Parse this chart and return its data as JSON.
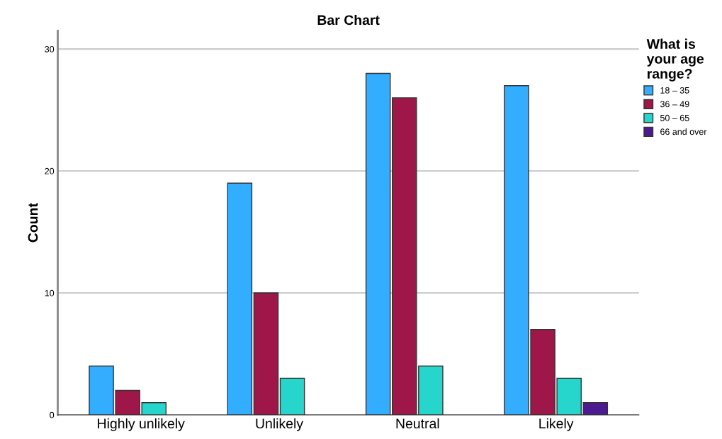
{
  "chart_data": {
    "type": "bar",
    "title": "Bar Chart",
    "ylabel": "Count",
    "legend_title": "What is\nyour age\nrange?",
    "categories": [
      "Highly unlikely",
      "Unlikely",
      "Neutral",
      "Likely"
    ],
    "series": [
      {
        "name": "18 – 35",
        "color": "#33adff",
        "values": [
          4,
          19,
          28,
          27
        ]
      },
      {
        "name": "36 – 49",
        "color": "#9e1748",
        "values": [
          2,
          10,
          26,
          7
        ]
      },
      {
        "name": "50 – 65",
        "color": "#26d6cc",
        "values": [
          1,
          3,
          4,
          3
        ]
      },
      {
        "name": "66 and over",
        "color": "#4c1a91",
        "values": [
          null,
          null,
          null,
          1
        ]
      }
    ],
    "ylim": [
      0,
      31.5
    ],
    "yticks": [
      0,
      10,
      20,
      30
    ],
    "grid": "y",
    "legend": "top right"
  }
}
